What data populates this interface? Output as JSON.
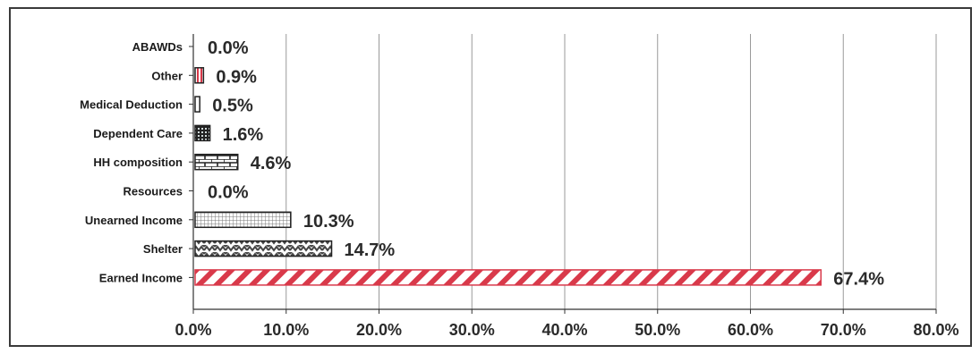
{
  "chart_data": {
    "type": "bar",
    "orientation": "horizontal",
    "categories": [
      "ABAWDs",
      "Other",
      "Medical Deduction",
      "Dependent Care",
      "HH composition",
      "Resources",
      "Unearned Income",
      "Shelter",
      "Earned Income"
    ],
    "values": [
      0.0,
      0.9,
      0.5,
      1.6,
      4.6,
      0.0,
      10.3,
      14.7,
      67.4
    ],
    "value_labels": [
      "0.0%",
      "0.9%",
      "0.5%",
      "1.6%",
      "4.6%",
      "0.0%",
      "10.3%",
      "14.7%",
      "67.4%"
    ],
    "patterns": [
      "none",
      "red-vertical",
      "white",
      "dark-grid",
      "brick",
      "none",
      "fine-grid",
      "zigzag",
      "red-diagonal"
    ],
    "x_ticks": [
      0,
      10,
      20,
      30,
      40,
      50,
      60,
      70,
      80
    ],
    "x_tick_labels": [
      "0.0%",
      "10.0%",
      "20.0%",
      "30.0%",
      "40.0%",
      "50.0%",
      "60.0%",
      "70.0%",
      "80.0%"
    ],
    "xlim": [
      0,
      80
    ],
    "grid": "vertical",
    "colors": {
      "red": "#d9394a",
      "dark": "#222222",
      "grid": "#9a9a9a",
      "axis": "#333333"
    }
  }
}
